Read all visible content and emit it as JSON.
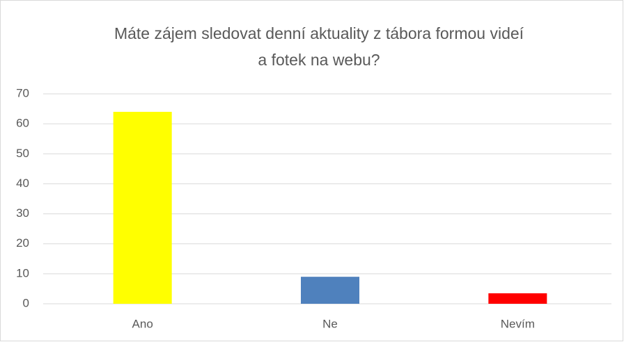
{
  "chart_data": {
    "type": "bar",
    "title": [
      "Máte zájem sledovat denní aktuality z tábora formou videí",
      "a fotek na webu?"
    ],
    "categories": [
      "Ano",
      "Ne",
      "Nevím"
    ],
    "values": [
      64,
      9,
      3.5
    ],
    "colors": [
      "#ffff00",
      "#4f81bd",
      "#ff0000"
    ],
    "ylim": [
      0,
      70
    ],
    "yticks": [
      0,
      10,
      20,
      30,
      40,
      50,
      60,
      70
    ],
    "grid": true
  }
}
